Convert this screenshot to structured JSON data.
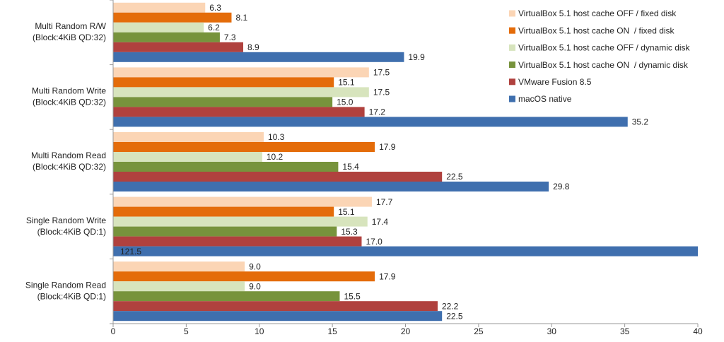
{
  "chart_data": {
    "type": "hbar",
    "categories": [
      [
        "Multi Random R/W",
        "(Block:4KiB QD:32)"
      ],
      [
        "Multi Random Write",
        "(Block:4KiB QD:32)"
      ],
      [
        "Multi Random Read",
        "(Block:4KiB QD:32)"
      ],
      [
        "Single Random Write",
        "(Block:4KiB QD:1)"
      ],
      [
        "Single Random Read",
        "(Block:4KiB QD:1)"
      ]
    ],
    "series": [
      {
        "name": "VirtualBox 5.1 host cache OFF / fixed disk",
        "color": "#fbd5b5",
        "values": [
          6.3,
          17.5,
          10.3,
          17.7,
          9.0
        ],
        "value_labels": [
          "6.3",
          "17.5",
          "10.3",
          "17.7",
          "9.0"
        ]
      },
      {
        "name": "VirtualBox 5.1 host cache ON  / fixed disk",
        "color": "#e46c0a",
        "values": [
          8.1,
          15.1,
          17.9,
          15.1,
          17.9
        ],
        "value_labels": [
          "8.1",
          "15.1",
          "17.9",
          "15.1",
          "17.9"
        ]
      },
      {
        "name": "VirtualBox 5.1 host cache OFF / dynamic disk",
        "color": "#d7e4bd",
        "values": [
          6.2,
          17.5,
          10.2,
          17.4,
          9.0
        ],
        "value_labels": [
          "6.2",
          "17.5",
          "10.2",
          "17.4",
          "9.0"
        ]
      },
      {
        "name": "VirtualBox 5.1 host cache ON  / dynamic disk",
        "color": "#77933c",
        "values": [
          7.3,
          15.0,
          15.4,
          15.3,
          15.5
        ],
        "value_labels": [
          "7.3",
          "15.0",
          "15.4",
          "15.3",
          "15.5"
        ]
      },
      {
        "name": "VMware Fusion 8.5",
        "color": "#b0413e",
        "values": [
          8.9,
          17.2,
          22.5,
          17.0,
          22.2
        ],
        "value_labels": [
          "8.9",
          "17.2",
          "22.5",
          "17.0",
          "22.2"
        ]
      },
      {
        "name": "macOS native",
        "color": "#3f6fae",
        "values": [
          19.9,
          35.2,
          29.8,
          121.5,
          22.5
        ],
        "value_labels": [
          "19.9",
          "35.2",
          "29.8",
          "121.5",
          "22.5"
        ]
      }
    ],
    "xlim": [
      0,
      40
    ],
    "xticks": [
      0,
      5,
      10,
      15,
      20,
      25,
      30,
      35,
      40
    ],
    "grid": false,
    "legend": "upper right"
  }
}
